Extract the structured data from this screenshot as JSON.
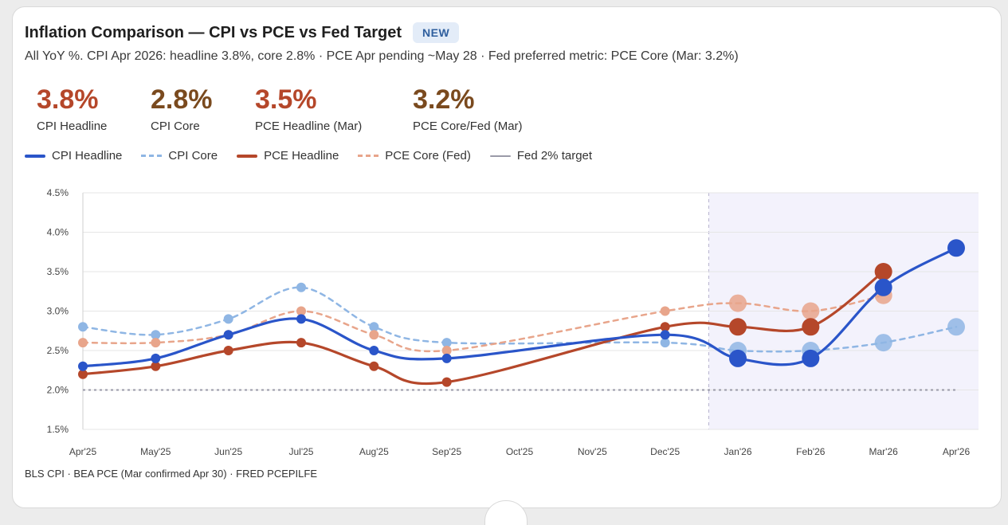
{
  "card": {
    "title": "Inflation Comparison — CPI vs PCE vs Fed Target",
    "badge": "NEW",
    "subtitle": "All YoY %. CPI Apr 2026: headline 3.8%, core 2.8% · PCE Apr pending ~May 28 · Fed preferred metric: PCE Core (Mar: 3.2%)",
    "source": "BLS CPI · BEA PCE (Mar confirmed Apr 30) · FRED PCEPILFE"
  },
  "kpis": [
    {
      "value": "3.8%",
      "label": "CPI Headline",
      "color": "#b5472a"
    },
    {
      "value": "2.8%",
      "label": "CPI Core",
      "color": "#7a4a1e"
    },
    {
      "value": "3.5%",
      "label": "PCE Headline (Mar)",
      "color": "#b5472a"
    },
    {
      "value": "3.2%",
      "label": "PCE Core/Fed (Mar)",
      "color": "#7a4a1e"
    }
  ],
  "legend": [
    {
      "label": "CPI Headline",
      "color": "#2a55c9",
      "style": "solid"
    },
    {
      "label": "CPI Core",
      "color": "#8fb6e4",
      "style": "dashed"
    },
    {
      "label": "PCE Headline",
      "color": "#b5472a",
      "style": "solid"
    },
    {
      "label": "PCE Core (Fed)",
      "color": "#e8a58b",
      "style": "dashed"
    },
    {
      "label": "Fed 2% target",
      "color": "#9a9aa8",
      "style": "thin"
    }
  ],
  "chart_data": {
    "type": "line",
    "categories": [
      "Apr'25",
      "May'25",
      "Jun'25",
      "Jul'25",
      "Aug'25",
      "Sep'25",
      "Oct'25",
      "Nov'25",
      "Dec'25",
      "Jan'26",
      "Feb'26",
      "Mar'26",
      "Apr'26"
    ],
    "ylim": [
      1.5,
      4.5
    ],
    "yticks": [
      "1.5%",
      "2.0%",
      "2.5%",
      "3.0%",
      "3.5%",
      "4.0%",
      "4.5%"
    ],
    "grid": true,
    "highlight_from_index": 8.6,
    "series": [
      {
        "name": "CPI Core",
        "color": "#8fb6e4",
        "style": "dashed",
        "values": [
          2.8,
          2.7,
          2.9,
          3.3,
          2.8,
          2.6,
          null,
          null,
          2.6,
          2.5,
          2.5,
          2.6,
          2.8
        ]
      },
      {
        "name": "PCE Core (Fed)",
        "color": "#e8a58b",
        "style": "dashed",
        "values": [
          2.6,
          2.6,
          2.7,
          3.0,
          2.7,
          2.5,
          null,
          null,
          3.0,
          3.1,
          3.0,
          3.2,
          null
        ]
      },
      {
        "name": "PCE Headline",
        "color": "#b5472a",
        "style": "solid",
        "values": [
          2.2,
          2.3,
          2.5,
          2.6,
          2.3,
          2.1,
          null,
          null,
          2.8,
          2.8,
          2.8,
          3.5,
          null
        ]
      },
      {
        "name": "CPI Headline",
        "color": "#2a55c9",
        "style": "solid",
        "values": [
          2.3,
          2.4,
          2.7,
          2.9,
          2.5,
          2.4,
          null,
          null,
          2.7,
          2.4,
          2.4,
          3.3,
          3.8
        ]
      },
      {
        "name": "Fed 2% target",
        "color": "#9a9aa8",
        "style": "dotted",
        "values": [
          2.0,
          2.0,
          2.0,
          2.0,
          2.0,
          2.0,
          2.0,
          2.0,
          2.0,
          2.0,
          2.0,
          2.0,
          2.0
        ]
      }
    ]
  }
}
